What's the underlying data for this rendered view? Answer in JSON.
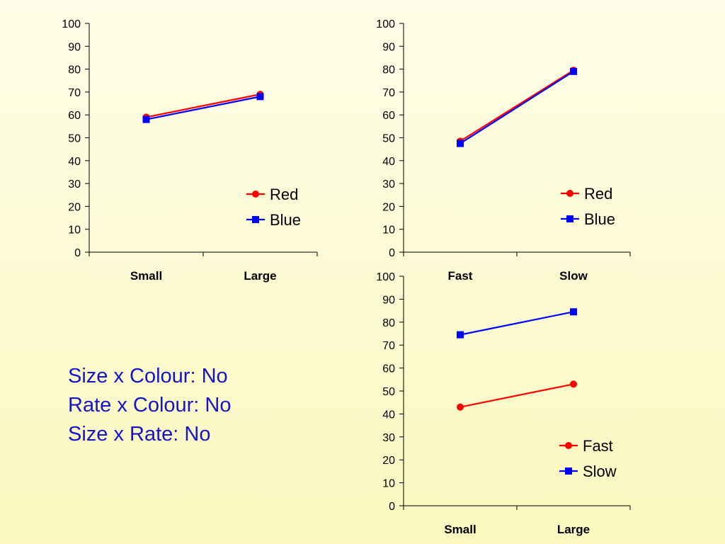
{
  "chart_data": [
    {
      "type": "line",
      "categories": [
        "Small",
        "Large"
      ],
      "series": [
        {
          "name": "Red",
          "color": "#ff0000",
          "marker": "circle",
          "values": [
            59,
            69
          ]
        },
        {
          "name": "Blue",
          "color": "#0000ff",
          "marker": "square",
          "values": [
            58,
            68
          ]
        }
      ],
      "ylim": [
        0,
        100
      ],
      "yticks": [
        0,
        10,
        20,
        30,
        40,
        50,
        60,
        70,
        80,
        90,
        100
      ],
      "legend_position": "bottom-right",
      "grid": false
    },
    {
      "type": "line",
      "categories": [
        "Fast",
        "Slow"
      ],
      "series": [
        {
          "name": "Red",
          "color": "#ff0000",
          "marker": "circle",
          "values": [
            48.5,
            79.5
          ]
        },
        {
          "name": "Blue",
          "color": "#0000ff",
          "marker": "square",
          "values": [
            47.5,
            79
          ]
        }
      ],
      "ylim": [
        0,
        100
      ],
      "yticks": [
        0,
        10,
        20,
        30,
        40,
        50,
        60,
        70,
        80,
        90,
        100
      ],
      "legend_position": "bottom-right",
      "grid": false
    },
    {
      "type": "line",
      "categories": [
        "Small",
        "Large"
      ],
      "series": [
        {
          "name": "Fast",
          "color": "#ff0000",
          "marker": "circle",
          "values": [
            43,
            53
          ]
        },
        {
          "name": "Slow",
          "color": "#0000ff",
          "marker": "square",
          "values": [
            74.5,
            84.5
          ]
        }
      ],
      "ylim": [
        0,
        100
      ],
      "yticks": [
        0,
        10,
        20,
        30,
        40,
        50,
        60,
        70,
        80,
        90,
        100
      ],
      "legend_position": "bottom-right",
      "grid": false
    }
  ],
  "notes": [
    "Size x Colour: No",
    "Rate x Colour: No",
    "Size x Rate: No"
  ]
}
